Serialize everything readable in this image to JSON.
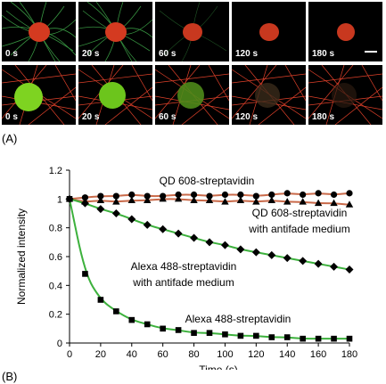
{
  "panel_a": {
    "label": "(A)",
    "top_row_times": [
      "0 s",
      "20 s",
      "60 s",
      "120 s",
      "180 s"
    ],
    "bottom_row_times": [
      "0 s",
      "20 s",
      "60 s",
      "120 s",
      "180 s"
    ],
    "colors": {
      "tubulin_green": "#3fa84a",
      "nucleus_red": "#d43a20",
      "filament_red": "#e0412a",
      "nucleus_green": "#7ed321"
    }
  },
  "panel_b": {
    "label": "(B)"
  },
  "chart_data": {
    "type": "line",
    "xlabel": "Time (s)",
    "ylabel": "Normalized intensity",
    "xlim": [
      0,
      180
    ],
    "ylim": [
      0,
      1.2
    ],
    "x_ticks": [
      "0",
      "20",
      "40",
      "60",
      "80",
      "100",
      "120",
      "140",
      "160",
      "180"
    ],
    "y_ticks": [
      "0",
      "0.2",
      "0.4",
      "0.6",
      "0.8",
      "1",
      "1.2"
    ],
    "grid": false,
    "series": [
      {
        "name": "QD 608-streptavidin",
        "marker": "circle",
        "fit_color": "#c96a4a",
        "x": [
          0,
          10,
          20,
          30,
          40,
          50,
          60,
          70,
          80,
          90,
          100,
          110,
          120,
          130,
          140,
          150,
          160,
          170,
          180
        ],
        "y": [
          1.0,
          1.01,
          1.02,
          1.02,
          1.03,
          1.02,
          1.02,
          1.03,
          1.03,
          1.02,
          1.03,
          1.03,
          1.02,
          1.03,
          1.04,
          1.03,
          1.04,
          1.03,
          1.04
        ]
      },
      {
        "name": "QD 608-streptavidin with antifade medium",
        "marker": "triangle",
        "fit_color": "#c96a4a",
        "x": [
          0,
          10,
          20,
          30,
          40,
          50,
          60,
          70,
          80,
          90,
          100,
          110,
          120,
          130,
          140,
          150,
          160,
          170,
          180
        ],
        "y": [
          1.0,
          0.98,
          0.99,
          0.98,
          0.99,
          0.99,
          1.0,
          1.0,
          0.99,
          0.99,
          0.98,
          0.99,
          0.98,
          0.99,
          0.98,
          0.98,
          0.97,
          0.97,
          0.96
        ]
      },
      {
        "name": "Alexa 488-streptavidin with antifade medium",
        "marker": "diamond",
        "fit_color": "#3db13d",
        "x": [
          0,
          10,
          20,
          30,
          40,
          50,
          60,
          70,
          80,
          90,
          100,
          110,
          120,
          130,
          140,
          150,
          160,
          170,
          180
        ],
        "y": [
          1.0,
          0.97,
          0.93,
          0.9,
          0.86,
          0.82,
          0.79,
          0.76,
          0.73,
          0.7,
          0.68,
          0.65,
          0.63,
          0.61,
          0.59,
          0.57,
          0.55,
          0.53,
          0.51
        ]
      },
      {
        "name": "Alexa 488-streptavidin",
        "marker": "square",
        "fit_color": "#3db13d",
        "x": [
          0,
          10,
          20,
          30,
          40,
          50,
          60,
          70,
          80,
          90,
          100,
          110,
          120,
          130,
          140,
          150,
          160,
          170,
          180
        ],
        "y": [
          1.0,
          0.48,
          0.3,
          0.22,
          0.16,
          0.13,
          0.1,
          0.09,
          0.07,
          0.07,
          0.06,
          0.05,
          0.05,
          0.04,
          0.04,
          0.03,
          0.03,
          0.03,
          0.03
        ]
      }
    ],
    "annotations": [
      {
        "text": "QD 608-streptavidin"
      },
      {
        "text": "QD 608-streptavidin"
      },
      {
        "text": "with antifade medium"
      },
      {
        "text": "Alexa 488-streptavidin"
      },
      {
        "text": "with antifade medium"
      },
      {
        "text": "Alexa 488-streptavidin"
      }
    ]
  }
}
